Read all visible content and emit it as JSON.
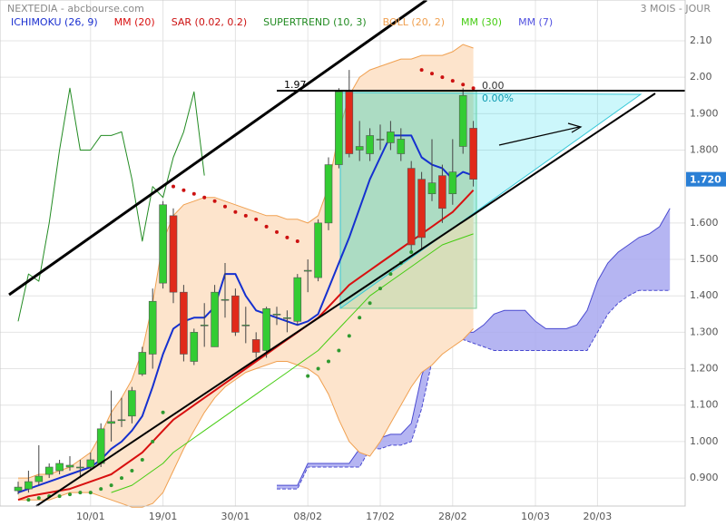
{
  "header": {
    "title": "NEXTEDIA - abcbourse.com",
    "period": "3 MOIS - JOUR"
  },
  "chart_data": {
    "type": "candlestick",
    "categories": [
      null,
      null,
      null,
      null,
      null,
      null,
      null,
      "10/01",
      null,
      null,
      null,
      null,
      null,
      null,
      "19/01",
      null,
      null,
      null,
      null,
      null,
      null,
      "30/01",
      null,
      null,
      null,
      null,
      null,
      null,
      "08/02",
      null,
      null,
      null,
      null,
      null,
      null,
      "17/02",
      null,
      null,
      null,
      null,
      null,
      null,
      "28/02",
      null,
      null,
      null,
      null,
      null,
      null,
      null,
      "10/03",
      null,
      null,
      null,
      null,
      null,
      "20/03",
      null,
      null,
      null,
      null,
      null,
      null,
      null
    ],
    "open": [
      0.865,
      0.87,
      0.89,
      0.91,
      0.92,
      0.93,
      0.93,
      0.93,
      0.94,
      1.05,
      1.06,
      1.07,
      1.185,
      1.24,
      1.435,
      1.62,
      1.41,
      1.22,
      1.32,
      1.26,
      1.39,
      1.4,
      1.32,
      1.28,
      1.25,
      1.35,
      1.34,
      1.33,
      1.47,
      1.45,
      1.6,
      1.76,
      1.96,
      1.8,
      1.79,
      1.83,
      1.82,
      1.79,
      1.75,
      1.72,
      1.68,
      1.73,
      1.68,
      1.81,
      1.86,
      null,
      null,
      null,
      null,
      null,
      null,
      null,
      null,
      null,
      null,
      null,
      null,
      null,
      null,
      null,
      null,
      null,
      null,
      null
    ],
    "high": [
      0.89,
      0.92,
      0.99,
      0.94,
      0.95,
      0.96,
      0.95,
      0.97,
      1.05,
      1.14,
      1.12,
      1.15,
      1.26,
      1.42,
      1.66,
      1.64,
      1.43,
      1.31,
      1.38,
      1.43,
      1.49,
      1.42,
      1.37,
      1.3,
      1.37,
      1.37,
      1.36,
      1.46,
      1.5,
      1.61,
      1.78,
      1.97,
      2.02,
      1.88,
      1.86,
      1.87,
      1.88,
      1.86,
      1.77,
      1.74,
      1.83,
      1.76,
      1.83,
      1.97,
      1.88,
      null,
      null,
      null,
      null,
      null,
      null,
      null,
      null,
      null,
      null,
      null,
      null,
      null,
      null,
      null,
      null,
      null,
      null,
      null
    ],
    "low": [
      0.855,
      0.86,
      0.88,
      0.9,
      0.91,
      0.92,
      0.9,
      0.92,
      0.93,
      1.0,
      1.04,
      1.05,
      1.18,
      1.2,
      1.42,
      1.38,
      1.22,
      1.21,
      1.26,
      1.26,
      1.34,
      1.29,
      1.27,
      1.23,
      1.23,
      1.32,
      1.3,
      1.32,
      1.41,
      1.44,
      1.58,
      1.75,
      1.78,
      1.77,
      1.77,
      1.8,
      1.8,
      1.77,
      1.52,
      1.53,
      1.66,
      1.6,
      1.65,
      1.79,
      1.7,
      null,
      null,
      null,
      null,
      null,
      null,
      null,
      null,
      null,
      null,
      null,
      null,
      null,
      null,
      null,
      null,
      null,
      null,
      null
    ],
    "close": [
      0.875,
      0.89,
      0.905,
      0.93,
      0.94,
      0.935,
      0.93,
      0.95,
      1.035,
      1.055,
      1.06,
      1.14,
      1.245,
      1.385,
      1.65,
      1.41,
      1.24,
      1.3,
      1.32,
      1.41,
      1.39,
      1.3,
      1.32,
      1.245,
      1.365,
      1.35,
      1.34,
      1.45,
      1.47,
      1.6,
      1.76,
      1.96,
      1.79,
      1.81,
      1.84,
      1.83,
      1.85,
      1.83,
      1.54,
      1.56,
      1.71,
      1.64,
      1.74,
      1.95,
      1.72,
      null,
      null,
      null,
      null,
      null,
      null,
      null,
      null,
      null,
      null,
      null,
      null,
      null,
      null,
      null,
      null,
      null,
      null,
      null
    ],
    "up_color": "#33cc33",
    "down_color": "#e02a1a",
    "series": [
      {
        "name": "ICHIMOKU (26, 9)",
        "style": "cloud",
        "color": "#1a2fd0",
        "line_color": "#4a4ad0",
        "fill": "#a8a8f0",
        "upper": [
          null,
          null,
          null,
          null,
          null,
          null,
          null,
          null,
          null,
          null,
          null,
          null,
          null,
          null,
          null,
          null,
          null,
          null,
          null,
          null,
          null,
          null,
          null,
          null,
          null,
          0.88,
          0.88,
          0.88,
          0.94,
          0.94,
          0.94,
          0.94,
          0.94,
          0.98,
          1.0,
          1.01,
          1.02,
          1.02,
          1.05,
          1.18,
          1.26,
          1.28,
          1.29,
          1.3,
          1.3,
          1.32,
          1.35,
          1.36,
          1.36,
          1.36,
          1.33,
          1.31,
          1.31,
          1.31,
          1.32,
          1.36,
          1.44,
          1.49,
          1.52,
          1.54,
          1.56,
          1.57,
          1.59,
          1.64
        ],
        "lower": [
          null,
          null,
          null,
          null,
          null,
          null,
          null,
          null,
          null,
          null,
          null,
          null,
          null,
          null,
          null,
          null,
          null,
          null,
          null,
          null,
          null,
          null,
          null,
          null,
          null,
          0.87,
          0.87,
          0.87,
          0.93,
          0.93,
          0.93,
          0.93,
          0.93,
          0.93,
          0.98,
          0.98,
          0.99,
          0.99,
          1.0,
          1.09,
          1.22,
          1.26,
          1.28,
          1.28,
          1.27,
          1.26,
          1.25,
          1.25,
          1.25,
          1.25,
          1.25,
          1.25,
          1.25,
          1.25,
          1.25,
          1.25,
          1.3,
          1.35,
          1.38,
          1.4,
          1.415,
          1.415,
          1.415,
          1.415
        ]
      },
      {
        "name": "MM (20)",
        "style": "line",
        "color": "#d81010",
        "width": 2,
        "values": [
          0.84,
          0.85,
          0.855,
          0.86,
          0.865,
          0.87,
          0.88,
          0.89,
          0.9,
          0.91,
          0.93,
          0.95,
          0.97,
          1.0,
          1.03,
          1.06,
          1.08,
          1.1,
          1.12,
          1.14,
          1.16,
          1.18,
          1.2,
          1.22,
          1.24,
          1.26,
          1.28,
          1.3,
          1.32,
          1.34,
          1.37,
          1.4,
          1.43,
          1.45,
          1.47,
          1.49,
          1.51,
          1.53,
          1.55,
          1.57,
          1.59,
          1.61,
          1.63,
          1.66,
          1.69,
          null,
          null,
          null,
          null,
          null,
          null,
          null,
          null,
          null,
          null,
          null,
          null,
          null,
          null,
          null,
          null,
          null,
          null,
          null
        ]
      },
      {
        "name": "SAR (0.02, 0.2)",
        "style": "dots",
        "color": "#cc1111",
        "alt_color": "#2f9a2f",
        "values": [
          null,
          0.84,
          0.845,
          0.85,
          0.85,
          0.855,
          0.86,
          0.86,
          0.87,
          0.88,
          0.9,
          0.92,
          0.95,
          1.0,
          1.08,
          1.7,
          1.69,
          1.68,
          1.67,
          1.66,
          1.645,
          1.63,
          1.62,
          1.61,
          1.59,
          1.575,
          1.56,
          1.55,
          1.18,
          1.2,
          1.22,
          1.25,
          1.29,
          1.34,
          1.38,
          1.42,
          1.46,
          1.49,
          1.52,
          2.02,
          2.01,
          2.0,
          1.99,
          1.98,
          1.97,
          null,
          null,
          null,
          null,
          null,
          null,
          null,
          null,
          null,
          null,
          null,
          null,
          null,
          null,
          null,
          null,
          null,
          null,
          null
        ]
      },
      {
        "name": "SUPERTREND (10, 3)",
        "style": "line",
        "color": "#228b22",
        "width": 1,
        "values": [
          1.33,
          1.46,
          1.44,
          1.6,
          1.8,
          1.97,
          1.8,
          1.8,
          1.84,
          1.84,
          1.85,
          1.72,
          1.55,
          1.7,
          1.67,
          1.78,
          1.85,
          1.96,
          1.73,
          null,
          null,
          null,
          null,
          null,
          null,
          null,
          null,
          null,
          null,
          null,
          null,
          null,
          null,
          null,
          null,
          null,
          null,
          null,
          null,
          null,
          null,
          null,
          null,
          null,
          null,
          null,
          null,
          null,
          null,
          null,
          null,
          null,
          null,
          null,
          null,
          null,
          null,
          null,
          null,
          null,
          null,
          null,
          null,
          null
        ]
      },
      {
        "name": "BOLL (20, 2)",
        "style": "band",
        "color": "#f0a050",
        "fill": "#fde4cc",
        "upper": [
          0.9,
          0.9,
          0.91,
          0.91,
          0.92,
          0.93,
          0.95,
          0.97,
          1.02,
          1.08,
          1.12,
          1.17,
          1.25,
          1.38,
          1.55,
          1.62,
          1.65,
          1.66,
          1.67,
          1.67,
          1.66,
          1.65,
          1.64,
          1.63,
          1.62,
          1.62,
          1.61,
          1.61,
          1.6,
          1.62,
          1.7,
          1.85,
          1.95,
          2.0,
          2.02,
          2.03,
          2.04,
          2.05,
          2.05,
          2.06,
          2.06,
          2.06,
          2.07,
          2.09,
          2.08,
          null,
          null,
          null,
          null,
          null,
          null,
          null,
          null,
          null,
          null,
          null,
          null,
          null,
          null,
          null,
          null,
          null,
          null,
          null
        ],
        "lower": [
          0.84,
          0.84,
          0.84,
          0.84,
          0.85,
          0.86,
          0.86,
          0.86,
          0.85,
          0.84,
          0.83,
          0.82,
          0.82,
          0.83,
          0.86,
          0.92,
          0.98,
          1.03,
          1.08,
          1.12,
          1.15,
          1.17,
          1.19,
          1.2,
          1.21,
          1.22,
          1.22,
          1.21,
          1.2,
          1.18,
          1.13,
          1.06,
          1.0,
          0.97,
          0.96,
          1.0,
          1.05,
          1.1,
          1.15,
          1.19,
          1.21,
          1.24,
          1.26,
          1.28,
          1.31,
          null,
          null,
          null,
          null,
          null,
          null,
          null,
          null,
          null,
          null,
          null,
          null,
          null,
          null,
          null,
          null,
          null,
          null,
          null
        ]
      },
      {
        "name": "MM (30)",
        "style": "line",
        "color": "#44cc11",
        "width": 1,
        "values": [
          null,
          null,
          null,
          null,
          null,
          null,
          null,
          null,
          null,
          0.86,
          0.87,
          0.88,
          0.9,
          0.92,
          0.94,
          0.97,
          0.99,
          1.01,
          1.03,
          1.05,
          1.07,
          1.09,
          1.11,
          1.13,
          1.15,
          1.17,
          1.19,
          1.21,
          1.23,
          1.25,
          1.28,
          1.31,
          1.34,
          1.37,
          1.4,
          1.42,
          1.44,
          1.46,
          1.48,
          1.5,
          1.52,
          1.54,
          1.55,
          1.56,
          1.57,
          null,
          null,
          null,
          null,
          null,
          null,
          null,
          null,
          null,
          null,
          null,
          null,
          null,
          null,
          null,
          null,
          null,
          null,
          null
        ]
      },
      {
        "name": "MM (7)",
        "style": "line",
        "color": "#5050e0",
        "line_color": "#1530d0",
        "width": 2,
        "values": [
          0.86,
          0.87,
          0.88,
          0.89,
          0.9,
          0.91,
          0.92,
          0.93,
          0.95,
          0.98,
          1.0,
          1.03,
          1.07,
          1.15,
          1.24,
          1.31,
          1.33,
          1.34,
          1.34,
          1.37,
          1.46,
          1.46,
          1.4,
          1.36,
          1.35,
          1.34,
          1.33,
          1.32,
          1.33,
          1.35,
          1.42,
          1.49,
          1.56,
          1.64,
          1.72,
          1.78,
          1.84,
          1.84,
          1.84,
          1.78,
          1.76,
          1.75,
          1.72,
          1.74,
          1.73,
          null,
          null,
          null,
          null,
          null,
          null,
          null,
          null,
          null,
          null,
          null,
          null,
          null,
          null,
          null,
          null,
          null,
          null,
          null
        ]
      }
    ],
    "ylim": [
      0.823,
      2.212
    ],
    "yticks": [
      {
        "value": 0.9,
        "label": "0.900"
      },
      {
        "value": 1.0,
        "label": "1.000"
      },
      {
        "value": 1.1,
        "label": "1.100"
      },
      {
        "value": 1.2,
        "label": "1.200"
      },
      {
        "value": 1.3,
        "label": "1.300"
      },
      {
        "value": 1.4,
        "label": "1.400"
      },
      {
        "value": 1.5,
        "label": "1.500"
      },
      {
        "value": 1.6,
        "label": "1.600"
      },
      {
        "value": 1.8,
        "label": "1.800"
      },
      {
        "value": 1.9,
        "label": "1.900"
      },
      {
        "value": 2.0,
        "label": "2.00"
      },
      {
        "value": 2.1,
        "label": "2.10"
      }
    ],
    "grid": true,
    "last_price": {
      "value": 1.72,
      "label": "1.720"
    },
    "annotations": {
      "level": "1.97",
      "fib_top": "0.00",
      "fib_pct": "0.00%"
    }
  }
}
